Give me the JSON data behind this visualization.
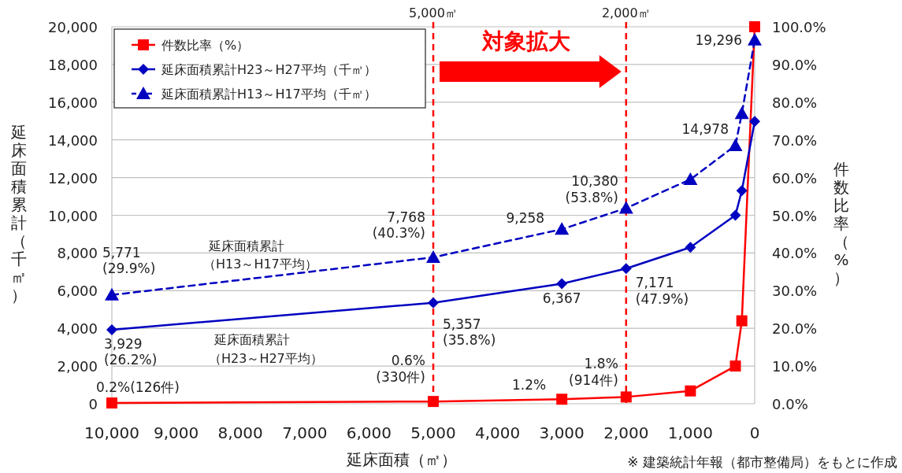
{
  "chart_data": {
    "type": "line",
    "xlabel": "延床面積（㎡）",
    "ylabel": "延床面積累計（千㎡）",
    "y2label": "件数比率（%）",
    "x": [
      10000,
      5000,
      3000,
      2000,
      1000,
      300,
      200,
      0
    ],
    "series": [
      {
        "name": "件数比率（%）",
        "color": "#ff0000",
        "axis": "y2",
        "marker": "square",
        "line_style": "solid",
        "values": [
          0.2,
          0.6,
          1.2,
          1.8,
          3.4,
          10,
          22,
          100
        ]
      },
      {
        "name": "延床面積累計H23～H27平均（千㎡）",
        "color": "#0000c0",
        "marker": "diamond",
        "line_style": "solid",
        "values": [
          3929,
          5357,
          6367,
          7171,
          8300,
          10000,
          11300,
          14978
        ]
      },
      {
        "name": "延床面積累計H13～H17平均（千㎡）",
        "color": "#0000c0",
        "marker": "triangle",
        "line_style": "dashed",
        "values": [
          5771,
          7768,
          9258,
          10380,
          11900,
          13700,
          15400,
          19296
        ]
      }
    ],
    "xlim": [
      10000,
      0
    ],
    "ylim": [
      0,
      20000
    ],
    "y2lim": [
      0,
      100
    ],
    "xticks": [
      {
        "value": 10000,
        "label": "10,000"
      },
      {
        "value": 9000,
        "label": "9,000"
      },
      {
        "value": 8000,
        "label": "8,000"
      },
      {
        "value": 7000,
        "label": "7,000"
      },
      {
        "value": 6000,
        "label": "6,000"
      },
      {
        "value": 5000,
        "label": "5,000"
      },
      {
        "value": 4000,
        "label": "4,000"
      },
      {
        "value": 3000,
        "label": "3,000"
      },
      {
        "value": 2000,
        "label": "2,000"
      },
      {
        "value": 1000,
        "label": "1,000"
      },
      0
    ],
    "yticks": [
      0,
      {
        "value": 2000,
        "label": "2,000"
      },
      {
        "value": 4000,
        "label": "4,000"
      },
      {
        "value": 6000,
        "label": "6,000"
      },
      {
        "value": 8000,
        "label": "8,000"
      },
      {
        "value": 10000,
        "label": "10,000"
      },
      {
        "value": 12000,
        "label": "12,000"
      },
      {
        "value": 14000,
        "label": "14,000"
      },
      {
        "value": 16000,
        "label": "16,000"
      },
      {
        "value": 18000,
        "label": "18,000"
      },
      {
        "value": 20000,
        "label": "20,000"
      }
    ],
    "y2ticks": [
      {
        "value": 0,
        "label": "0.0%"
      },
      {
        "value": 10,
        "label": "10.0%"
      },
      {
        "value": 20,
        "label": "20.0%"
      },
      {
        "value": 30,
        "label": "30.0%"
      },
      {
        "value": 40,
        "label": "40.0%"
      },
      {
        "value": 50,
        "label": "50.0%"
      },
      {
        "value": 60,
        "label": "60.0%"
      },
      {
        "value": 70,
        "label": "70.0%"
      },
      {
        "value": 80,
        "label": "80.0%"
      },
      {
        "value": 90,
        "label": "90.0%"
      },
      {
        "value": 100,
        "label": "100.0%"
      }
    ],
    "grid": "y",
    "legend": "top left",
    "ref_lines": [
      {
        "axis": "x",
        "value": 5000,
        "label": "5,000㎡",
        "color": "#ff0000",
        "line_style": "dashed"
      },
      {
        "axis": "x",
        "value": 2000,
        "label": "2,000㎡",
        "color": "#ff0000",
        "line_style": "dashed"
      }
    ],
    "annotations": [
      {
        "text": "5,771\n(29.9%)",
        "x": 10000,
        "y": 5771
      },
      {
        "text": "3,929\n(26.2%)",
        "x": 10000,
        "y": 3929
      },
      {
        "text": "0.2%(126件)",
        "x": 10000,
        "y": 40
      },
      {
        "text": "7,768\n(40.3%)",
        "x": 5000,
        "y": 7768
      },
      {
        "text": "5,357\n(35.8%)",
        "x": 5000,
        "y": 5357
      },
      {
        "text": "0.6%\n(330件)",
        "x": 5000,
        "y": 120
      },
      {
        "text": "9,258",
        "x": 3000,
        "y": 9258
      },
      {
        "text": "6,367",
        "x": 3000,
        "y": 6367
      },
      {
        "text": "1.2%",
        "x": 3000,
        "y": 240
      },
      {
        "text": "10,380\n(53.8%)",
        "x": 2000,
        "y": 10380
      },
      {
        "text": "7,171\n(47.9%)",
        "x": 2000,
        "y": 7171
      },
      {
        "text": "1.8%\n(914件)",
        "x": 2000,
        "y": 360
      },
      {
        "text": "19,296",
        "x": 0,
        "y": 19296
      },
      {
        "text": "14,978",
        "x": 0,
        "y": 14978
      },
      "延床面積累計",
      "（H13～H17平均）",
      "延床面積累計",
      "（H23～H27平均）",
      "対象拡大",
      "※ 建築統計年報（都市整備局）をもとに作成"
    ]
  }
}
